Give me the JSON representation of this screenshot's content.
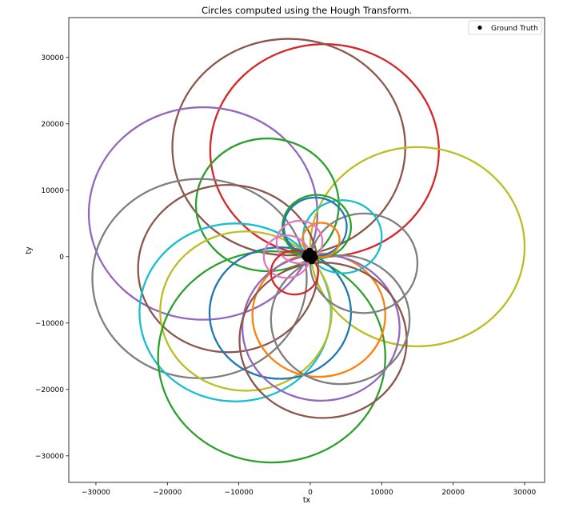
{
  "chart_data": {
    "type": "scatter",
    "title": "Circles computed using the Hough Transform.",
    "xlabel": "tx",
    "ylabel": "ty",
    "xlim": [
      -33800,
      32800
    ],
    "ylim": [
      -34000,
      36000
    ],
    "xticks": [
      -30000,
      -20000,
      -10000,
      0,
      10000,
      20000,
      30000
    ],
    "yticks": [
      -30000,
      -20000,
      -10000,
      0,
      10000,
      20000,
      30000
    ],
    "xtick_labels": [
      "−30000",
      "−20000",
      "−10000",
      "0",
      "10000",
      "20000",
      "30000"
    ],
    "ytick_labels": [
      "−30000",
      "−20000",
      "−10000",
      "0",
      "10000",
      "20000",
      "30000"
    ],
    "grid": false,
    "legend": {
      "position": "top-right",
      "entries": [
        {
          "label": "Ground Truth",
          "marker": "dot",
          "color": "#000000"
        }
      ]
    },
    "circles": [
      {
        "cx": 2000,
        "cy": 16000,
        "r": 16000,
        "color": "#d62728"
      },
      {
        "cx": -3000,
        "cy": 16500,
        "r": 16300,
        "color": "#8c564b"
      },
      {
        "cx": -15000,
        "cy": 6500,
        "r": 16000,
        "color": "#9467bd"
      },
      {
        "cx": 15000,
        "cy": 1500,
        "r": 15000,
        "color": "#bcbd22"
      },
      {
        "cx": -6000,
        "cy": 7800,
        "r": 10000,
        "color": "#2ca02c"
      },
      {
        "cx": -15500,
        "cy": -3300,
        "r": 15000,
        "color": "#7f7f7f"
      },
      {
        "cx": -11500,
        "cy": -1800,
        "r": 12600,
        "color": "#8c564b"
      },
      {
        "cx": -10500,
        "cy": -8400,
        "r": 13400,
        "color": "#17becf"
      },
      {
        "cx": -9000,
        "cy": -8200,
        "r": 12000,
        "color": "#bcbd22"
      },
      {
        "cx": -5400,
        "cy": -15100,
        "r": 15900,
        "color": "#2ca02c"
      },
      {
        "cx": -4200,
        "cy": -8500,
        "r": 9900,
        "color": "#1f77b4"
      },
      {
        "cx": 1200,
        "cy": -8800,
        "r": 9300,
        "color": "#ff7f0e"
      },
      {
        "cx": 1500,
        "cy": -10700,
        "r": 11000,
        "color": "#9467bd"
      },
      {
        "cx": 1800,
        "cy": -12600,
        "r": 11700,
        "color": "#8c564b"
      },
      {
        "cx": 4200,
        "cy": -9500,
        "r": 9700,
        "color": "#7f7f7f"
      },
      {
        "cx": 7500,
        "cy": -1000,
        "r": 7500,
        "color": "#7f7f7f"
      },
      {
        "cx": 4500,
        "cy": 3000,
        "r": 5500,
        "color": "#17becf"
      },
      {
        "cx": 900,
        "cy": 4500,
        "r": 4800,
        "color": "#2ca02c"
      },
      {
        "cx": 700,
        "cy": 4500,
        "r": 4400,
        "color": "#1f77b4"
      },
      {
        "cx": 1500,
        "cy": 2500,
        "r": 2600,
        "color": "#ff7f0e"
      },
      {
        "cx": -1500,
        "cy": 2200,
        "r": 3200,
        "color": "#e377c2"
      },
      {
        "cx": -3300,
        "cy": 0,
        "r": 3200,
        "color": "#e377c2"
      },
      {
        "cx": -2200,
        "cy": -2400,
        "r": 3300,
        "color": "#d62728"
      }
    ],
    "points": [
      {
        "x": -500,
        "y": 500,
        "color": "#000000"
      },
      {
        "x": 0,
        "y": 0,
        "color": "#000000"
      },
      {
        "x": 400,
        "y": 400,
        "color": "#000000"
      },
      {
        "x": -400,
        "y": -300,
        "color": "#000000"
      },
      {
        "x": 200,
        "y": -600,
        "color": "#000000"
      },
      {
        "x": 600,
        "y": -100,
        "color": "#000000"
      },
      {
        "x": -100,
        "y": 800,
        "color": "#000000"
      },
      {
        "x": -700,
        "y": 0,
        "color": "#000000"
      }
    ]
  }
}
